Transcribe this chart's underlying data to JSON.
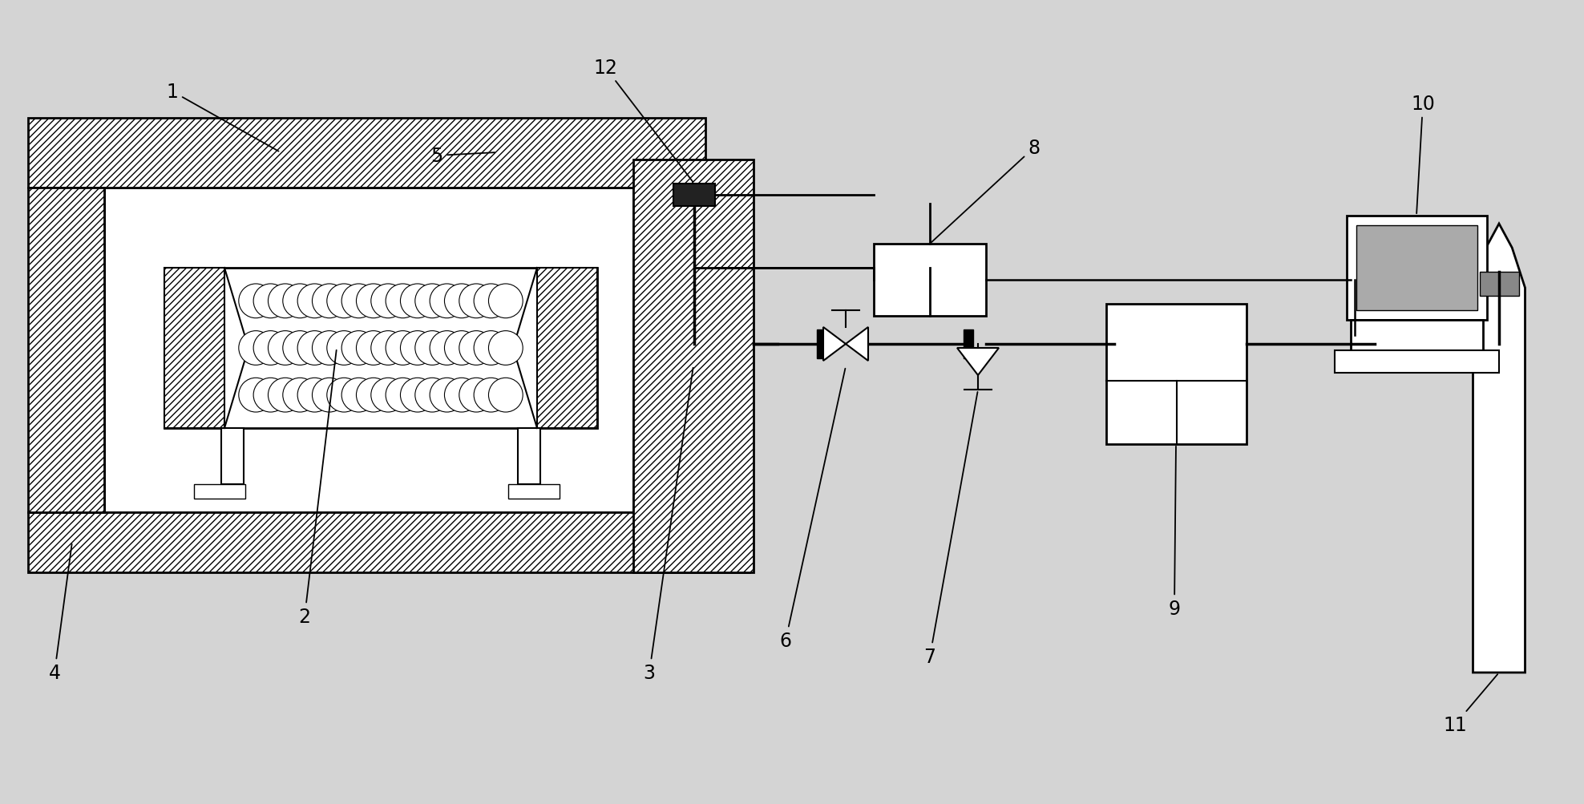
{
  "bg_color": "#d4d4d4",
  "lc": "#000000",
  "label_fs": 17,
  "hatch_density": "////",
  "fig_w": 19.76,
  "fig_h": 10.04
}
